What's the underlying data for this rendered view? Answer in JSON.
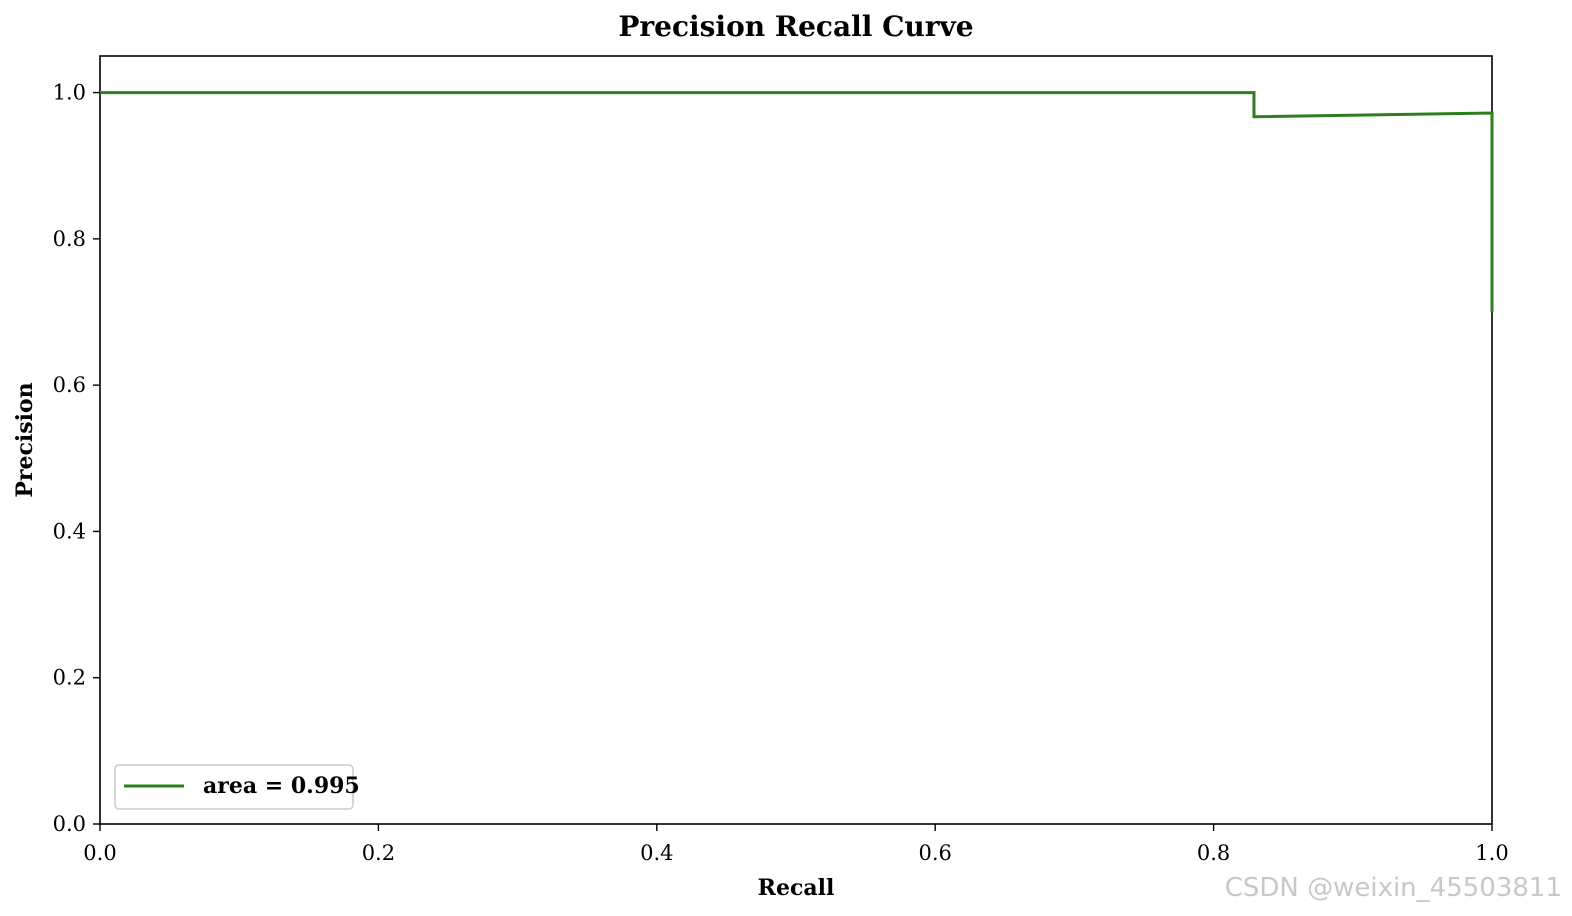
{
  "chart_data": {
    "type": "line",
    "title": "Precision Recall Curve",
    "xlabel": "Recall",
    "ylabel": "Precision",
    "xlim": [
      0.0,
      1.0
    ],
    "ylim": [
      0.0,
      1.05
    ],
    "x_ticks": [
      "0.0",
      "0.2",
      "0.4",
      "0.6",
      "0.8",
      "1.0"
    ],
    "y_ticks": [
      "0.0",
      "0.2",
      "0.4",
      "0.6",
      "0.8",
      "1.0"
    ],
    "grid": false,
    "legend_position": "lower-left",
    "series": [
      {
        "name": "area = 0.995",
        "color": "#2e7d1f",
        "points": [
          [
            0.0,
            1.0
          ],
          [
            0.829,
            1.0
          ],
          [
            0.829,
            0.967
          ],
          [
            1.0,
            0.972
          ],
          [
            1.0,
            0.7
          ]
        ]
      }
    ]
  },
  "watermark": "CSDN @weixin_45503811"
}
